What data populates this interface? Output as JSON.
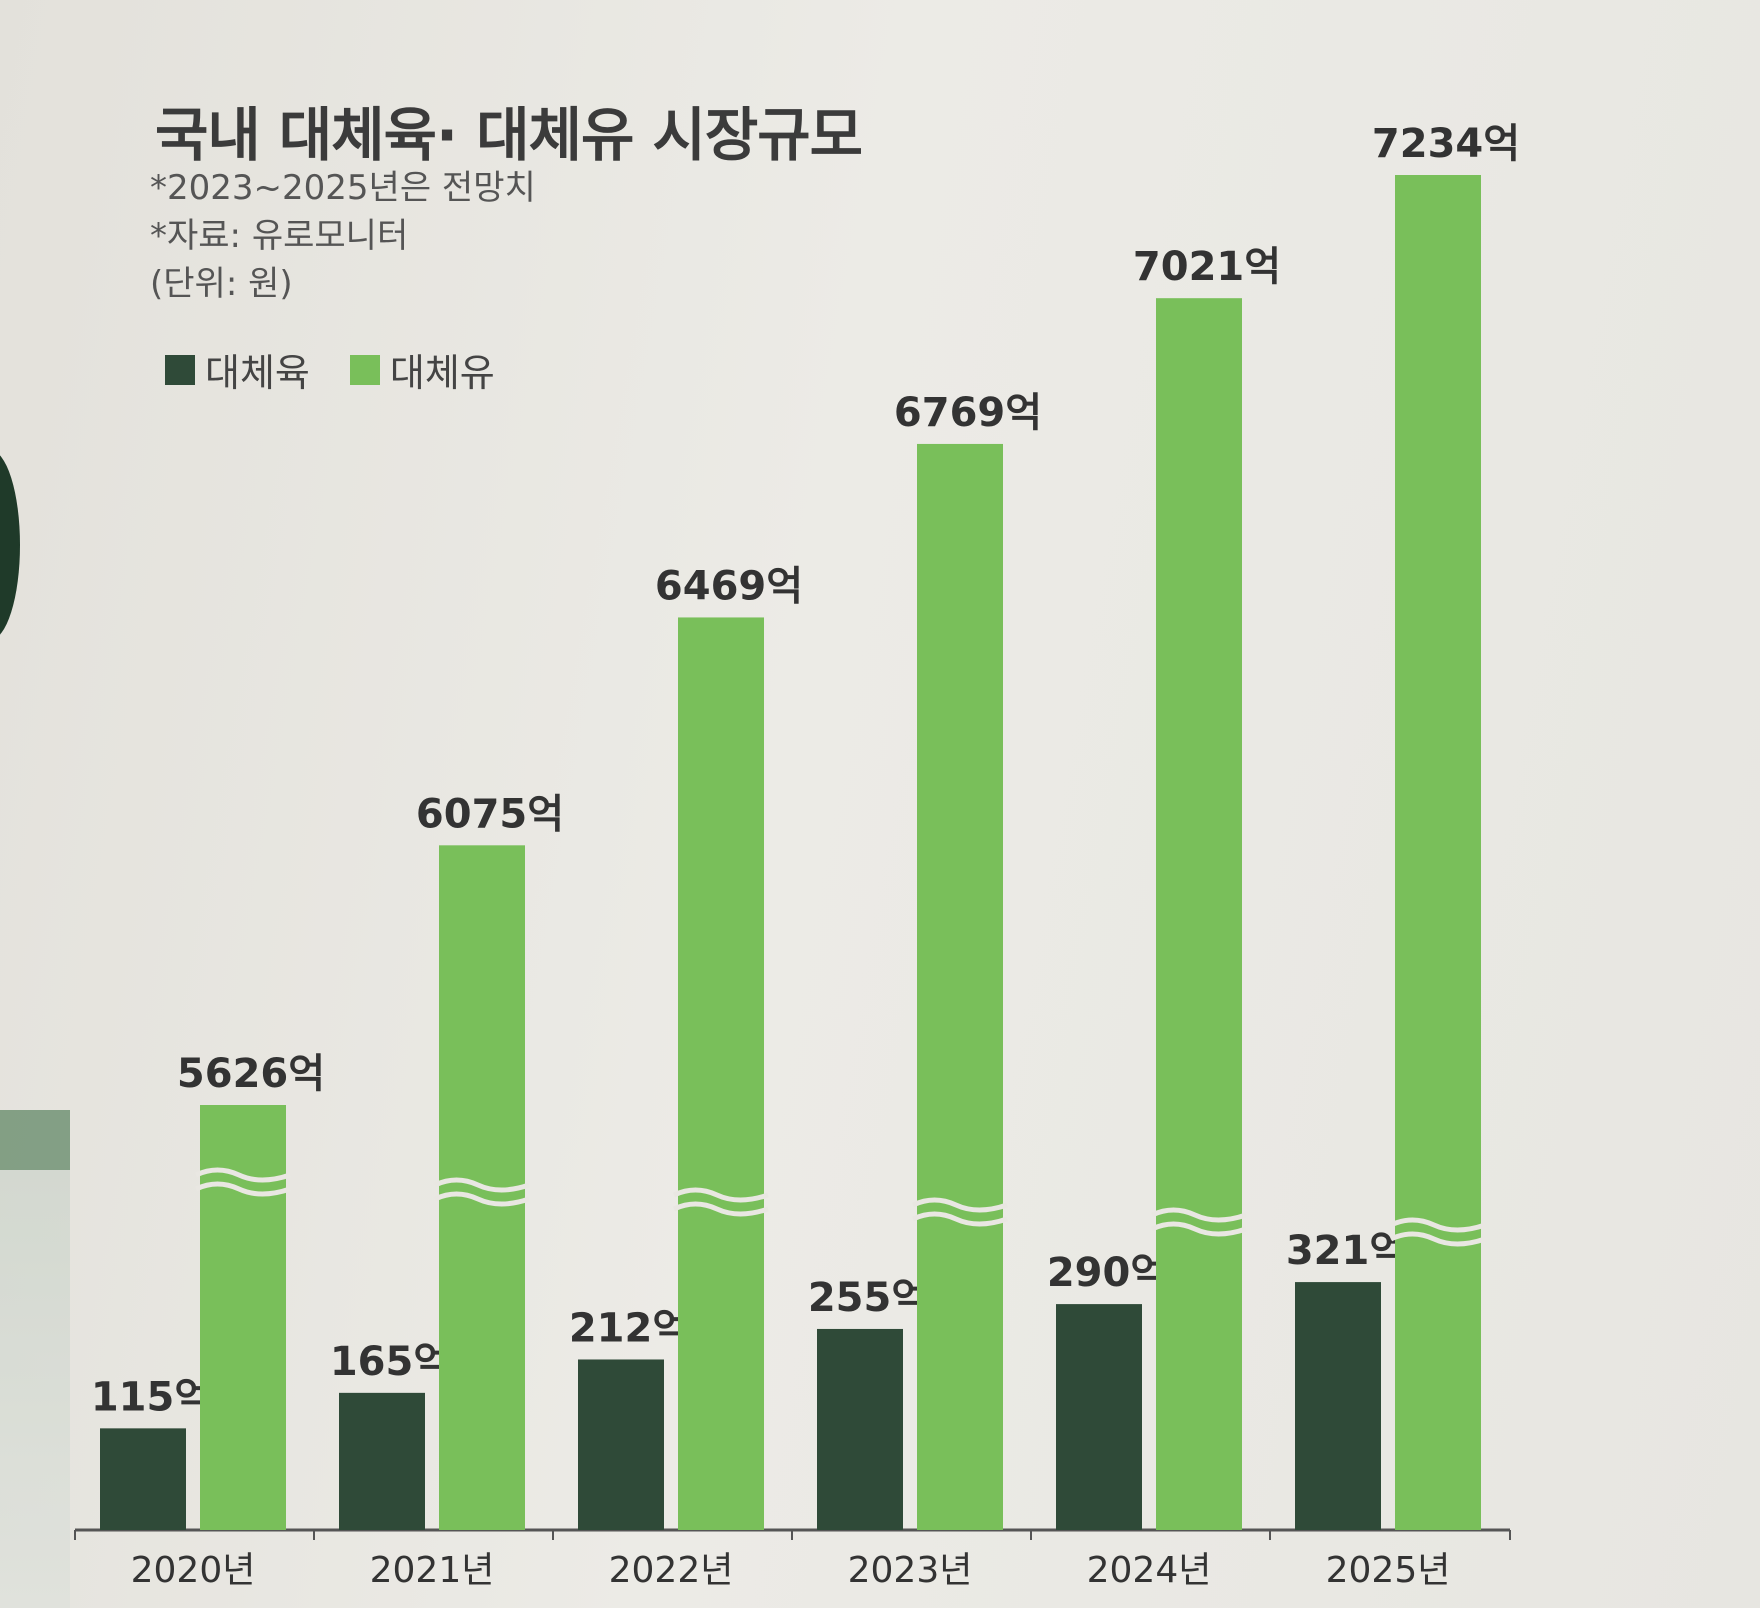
{
  "title": "국내 대체육· 대체유 시장규모",
  "notes": [
    "*2023~2025년은 전망치",
    "*자료: 유로모니터",
    "(단위: 원)"
  ],
  "legend": [
    {
      "label": "대체육",
      "color": "#2f4a38"
    },
    {
      "label": "대체유",
      "color": "#79bf5a"
    }
  ],
  "chart_data": {
    "type": "bar",
    "categories": [
      "2020년",
      "2021년",
      "2022년",
      "2023년",
      "2024년",
      "2025년"
    ],
    "series": [
      {
        "name": "대체육",
        "values": [
          115,
          165,
          212,
          255,
          290,
          321
        ],
        "labels": [
          "115억",
          "165억",
          "212억",
          "255억",
          "290억",
          "321억"
        ],
        "color": "#2f4a38"
      },
      {
        "name": "대체유",
        "values": [
          5626,
          6075,
          6469,
          6769,
          7021,
          7234
        ],
        "labels": [
          "5626억",
          "6075억",
          "6469억",
          "6769억",
          "7021억",
          "7234억"
        ],
        "color": "#79bf5a"
      }
    ],
    "axis_break": true,
    "unit": "억 원"
  }
}
